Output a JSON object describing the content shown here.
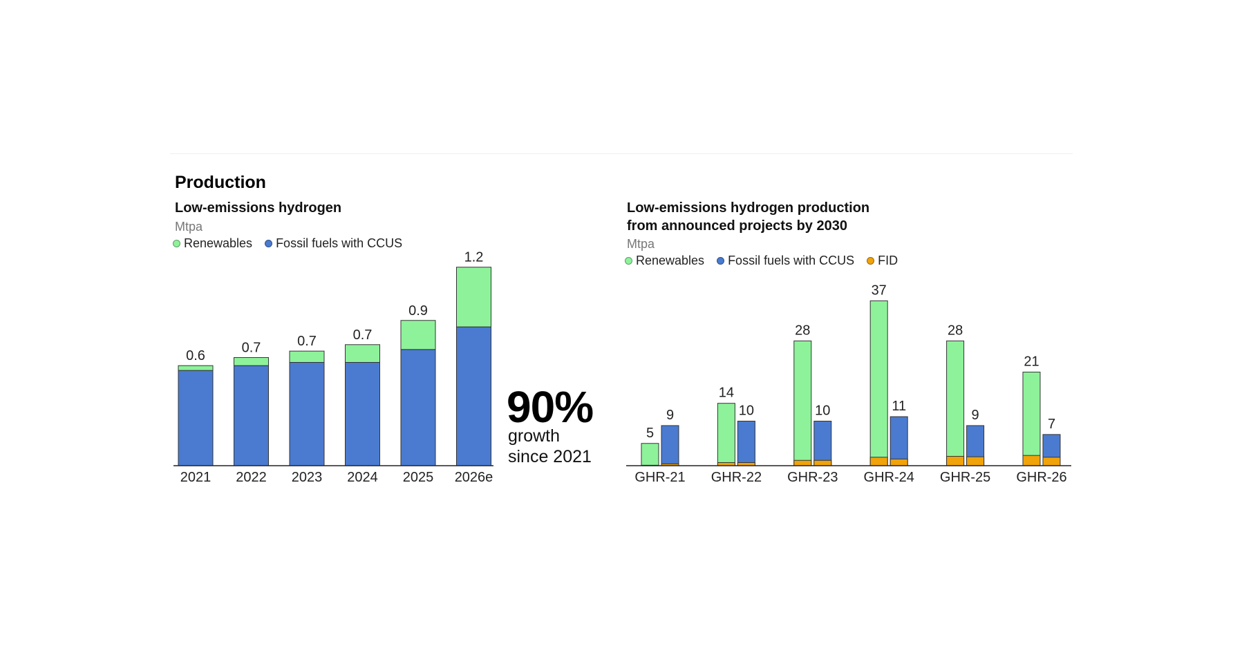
{
  "section_title": "Production",
  "colors": {
    "renewables": "#8ef29a",
    "fossil": "#4a7bd0",
    "fid": "#f0a30a",
    "stroke": "#333333"
  },
  "stat": {
    "value": "90%",
    "caption_line1": "growth",
    "caption_line2": "since 2021"
  },
  "chart_data": [
    {
      "type": "bar",
      "stacked": true,
      "title": "Low-emissions hydrogen",
      "unit": "Mtpa",
      "legend": [
        "Renewables",
        "Fossil fuels with CCUS"
      ],
      "categories": [
        "2021",
        "2022",
        "2023",
        "2024",
        "2025",
        "2026e"
      ],
      "series": [
        {
          "name": "Fossil fuels with CCUS",
          "values": [
            0.59,
            0.62,
            0.64,
            0.64,
            0.72,
            0.86
          ]
        },
        {
          "name": "Renewables",
          "values": [
            0.03,
            0.05,
            0.07,
            0.11,
            0.18,
            0.37
          ]
        }
      ],
      "totals": [
        "0.6",
        "0.7",
        "0.7",
        "0.7",
        "0.9",
        "1.2"
      ],
      "ylim": [
        0,
        1.25
      ]
    },
    {
      "type": "bar",
      "grouped": true,
      "title": "Low-emissions hydrogen production from announced projects by 2030",
      "title_line1": "Low-emissions hydrogen production",
      "title_line2": "from announced projects by 2030",
      "unit": "Mtpa",
      "legend": [
        "Renewables",
        "Fossil fuels with CCUS",
        "FID"
      ],
      "categories": [
        "GHR-21",
        "GHR-22",
        "GHR-23",
        "GHR-24",
        "GHR-25",
        "GHR-26"
      ],
      "series": [
        {
          "name": "Renewables",
          "values": [
            5,
            14,
            28,
            37,
            28,
            21
          ],
          "labels": [
            "5",
            "14",
            "28",
            "37",
            "28",
            "21"
          ],
          "fid": [
            0.1,
            0.7,
            1.2,
            1.9,
            2.1,
            2.3
          ]
        },
        {
          "name": "Fossil fuels with CCUS",
          "values": [
            9,
            10,
            10,
            11,
            9,
            7
          ],
          "labels": [
            "9",
            "10",
            "10",
            "11",
            "9",
            "7"
          ],
          "fid": [
            0.4,
            0.7,
            1.2,
            1.5,
            2.0,
            1.9
          ]
        }
      ],
      "ylim": [
        0,
        40
      ]
    }
  ]
}
